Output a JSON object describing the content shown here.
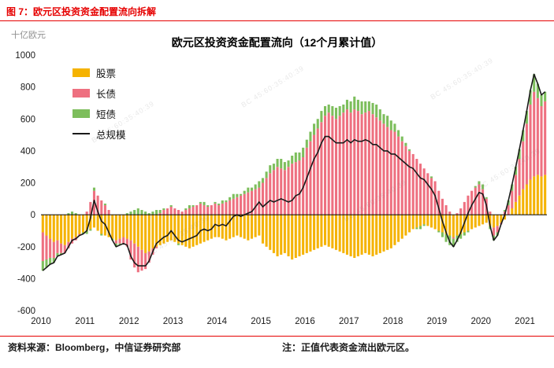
{
  "page": {
    "figure_caption": "图 7：欧元区投资资金配置流向拆解",
    "source_note": "资料来源：Bloomberg，中信证券研究部",
    "right_note": "注：正值代表资金流出欧元区。",
    "watermark_text": "BC 45:60:35:40:39",
    "accent_color": "#e60000"
  },
  "chart_data": {
    "type": "bar",
    "stacked": true,
    "title": "欧元区投资资金配置流向（12个月累计值）",
    "xlabel": "",
    "ylabel": "十亿欧元",
    "ylim": [
      -600,
      1000
    ],
    "ytick_step": 200,
    "grid": false,
    "legend_position": "top-left",
    "x_start": 2010,
    "x_end": 2021,
    "frequency": "monthly",
    "start_month": "2010-01",
    "series": [
      {
        "name": "股票",
        "color": "#F5B301",
        "values": [
          -110,
          -130,
          -150,
          -170,
          -160,
          -180,
          -190,
          -170,
          -150,
          -140,
          -120,
          -110,
          -100,
          -90,
          -80,
          -100,
          -120,
          -130,
          -140,
          -150,
          -160,
          -150,
          -140,
          -150,
          -160,
          -180,
          -200,
          -220,
          -240,
          -230,
          -210,
          -200,
          -190,
          -180,
          -170,
          -160,
          -170,
          -180,
          -190,
          -200,
          -210,
          -200,
          -190,
          -180,
          -170,
          -160,
          -150,
          -140,
          -140,
          -150,
          -160,
          -150,
          -140,
          -130,
          -140,
          -150,
          -160,
          -150,
          -140,
          -130,
          -180,
          -200,
          -220,
          -240,
          -260,
          -250,
          -240,
          -260,
          -280,
          -270,
          -260,
          -250,
          -240,
          -230,
          -220,
          -210,
          -200,
          -190,
          -200,
          -210,
          -220,
          -230,
          -240,
          -250,
          -260,
          -270,
          -260,
          -250,
          -240,
          -250,
          -260,
          -250,
          -240,
          -230,
          -220,
          -210,
          -190,
          -170,
          -150,
          -130,
          -110,
          -90,
          -80,
          -70,
          -60,
          -70,
          -80,
          -90,
          -100,
          -110,
          -120,
          -130,
          -140,
          -130,
          -120,
          -110,
          -100,
          -90,
          -80,
          -70,
          -60,
          -50,
          -70,
          -80,
          -70,
          -50,
          -30,
          0,
          40,
          80,
          120,
          160,
          190,
          220,
          240,
          250,
          240,
          250
        ]
      },
      {
        "name": "长债",
        "color": "#EE7080",
        "values": [
          -180,
          -150,
          -120,
          -100,
          -80,
          -60,
          -50,
          -40,
          -30,
          -20,
          -10,
          0,
          20,
          80,
          150,
          120,
          90,
          60,
          30,
          0,
          -20,
          -30,
          -40,
          -50,
          -120,
          -150,
          -160,
          -130,
          -100,
          -70,
          -40,
          -10,
          10,
          30,
          40,
          50,
          40,
          30,
          20,
          30,
          40,
          50,
          60,
          70,
          60,
          50,
          60,
          70,
          60,
          70,
          80,
          90,
          100,
          110,
          120,
          130,
          140,
          150,
          160,
          170,
          200,
          230,
          260,
          280,
          300,
          290,
          280,
          300,
          320,
          330,
          340,
          360,
          420,
          460,
          500,
          540,
          580,
          620,
          640,
          620,
          600,
          620,
          640,
          660,
          640,
          660,
          650,
          630,
          640,
          650,
          630,
          610,
          590,
          570,
          550,
          530,
          520,
          490,
          460,
          430,
          400,
          380,
          350,
          320,
          290,
          260,
          230,
          210,
          150,
          100,
          60,
          20,
          -10,
          10,
          40,
          80,
          120,
          150,
          170,
          190,
          160,
          100,
          20,
          -50,
          -40,
          -10,
          20,
          60,
          110,
          170,
          230,
          300,
          380,
          470,
          530,
          480,
          440,
          460
        ]
      },
      {
        "name": "短债",
        "color": "#7DBE5C",
        "values": [
          -60,
          -50,
          -40,
          -30,
          -20,
          -10,
          0,
          10,
          20,
          10,
          0,
          -10,
          -20,
          -10,
          20,
          0,
          -10,
          10,
          0,
          -10,
          -20,
          -10,
          0,
          10,
          20,
          30,
          40,
          30,
          20,
          10,
          20,
          30,
          20,
          10,
          0,
          10,
          0,
          -10,
          0,
          10,
          20,
          10,
          0,
          10,
          20,
          10,
          0,
          10,
          10,
          20,
          10,
          20,
          30,
          20,
          10,
          20,
          30,
          20,
          30,
          40,
          30,
          40,
          50,
          40,
          50,
          60,
          50,
          40,
          50,
          60,
          50,
          60,
          50,
          60,
          70,
          60,
          70,
          60,
          50,
          60,
          70,
          60,
          50,
          60,
          70,
          80,
          70,
          80,
          70,
          60,
          70,
          80,
          70,
          60,
          70,
          60,
          50,
          40,
          30,
          20,
          10,
          0,
          -10,
          -20,
          -10,
          0,
          10,
          0,
          -10,
          -30,
          -50,
          -60,
          -50,
          -40,
          -30,
          -20,
          -10,
          0,
          10,
          20,
          30,
          10,
          -20,
          -30,
          -20,
          0,
          10,
          30,
          40,
          50,
          60,
          70,
          80,
          90,
          110,
          90,
          70,
          60
        ]
      }
    ],
    "line_series": {
      "name": "总规模",
      "color": "#1a1a1a",
      "derived": "sum_of_series"
    }
  }
}
